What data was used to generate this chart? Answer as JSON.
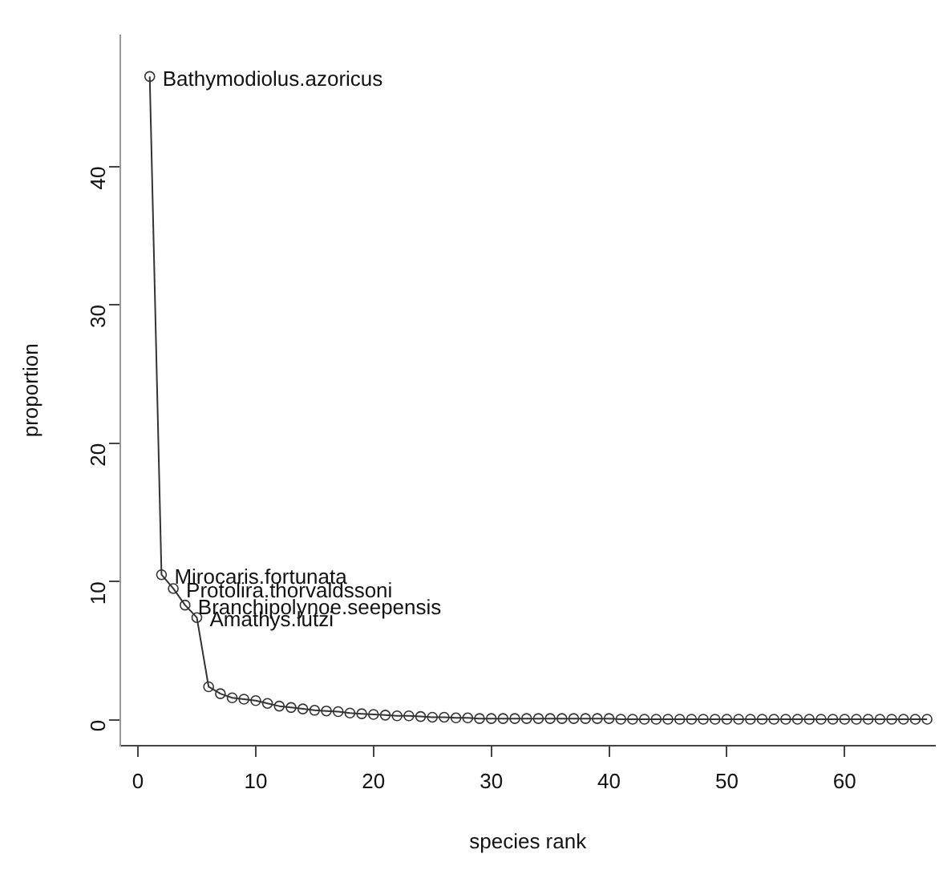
{
  "chart_data": {
    "type": "line",
    "xlabel": "species rank",
    "ylabel": "proportion",
    "x": [
      1,
      2,
      3,
      4,
      5,
      6,
      7,
      8,
      9,
      10,
      11,
      12,
      13,
      14,
      15,
      16,
      17,
      18,
      19,
      20,
      21,
      22,
      23,
      24,
      25,
      26,
      27,
      28,
      29,
      30,
      31,
      32,
      33,
      34,
      35,
      36,
      37,
      38,
      39,
      40,
      41,
      42,
      43,
      44,
      45,
      46,
      47,
      48,
      49,
      50,
      51,
      52,
      53,
      54,
      55,
      56,
      57,
      58,
      59,
      60,
      61,
      62,
      63,
      64,
      65,
      66,
      67
    ],
    "series": [
      {
        "color": "#333333",
        "values": [
          46.5,
          10.5,
          9.5,
          8.3,
          7.4,
          2.4,
          1.9,
          1.6,
          1.5,
          1.4,
          1.2,
          1.0,
          0.9,
          0.8,
          0.7,
          0.65,
          0.6,
          0.5,
          0.45,
          0.4,
          0.35,
          0.3,
          0.3,
          0.25,
          0.2,
          0.2,
          0.15,
          0.15,
          0.1,
          0.1,
          0.1,
          0.1,
          0.1,
          0.1,
          0.1,
          0.1,
          0.1,
          0.1,
          0.1,
          0.1,
          0.05,
          0.05,
          0.05,
          0.05,
          0.05,
          0.05,
          0.05,
          0.05,
          0.05,
          0.05,
          0.05,
          0.05,
          0.05,
          0.05,
          0.05,
          0.05,
          0.05,
          0.05,
          0.05,
          0.05,
          0.05,
          0.05,
          0.05,
          0.05,
          0.05,
          0.05,
          0.05
        ]
      }
    ],
    "annotations": [
      {
        "text": "Bathymodiolus.azoricus",
        "x": 1,
        "y": 46.5
      },
      {
        "text": "Mirocaris.fortunata",
        "x": 2,
        "y": 10.5
      },
      {
        "text": "Protolira.thorvaldssoni",
        "x": 3,
        "y": 9.5
      },
      {
        "text": "Branchipolynoe.seepensis",
        "x": 4,
        "y": 8.3
      },
      {
        "text": "Amathys.lutzi",
        "x": 5,
        "y": 7.4
      }
    ],
    "xlim": [
      -1.5,
      67.7
    ],
    "ylim": [
      -1.86,
      49.5
    ],
    "xticks": [
      0,
      10,
      20,
      30,
      40,
      50,
      60
    ],
    "yticks": [
      0,
      10,
      20,
      30,
      40
    ],
    "grid": false,
    "legend": false,
    "marker": "circle",
    "line_style": "solid"
  }
}
